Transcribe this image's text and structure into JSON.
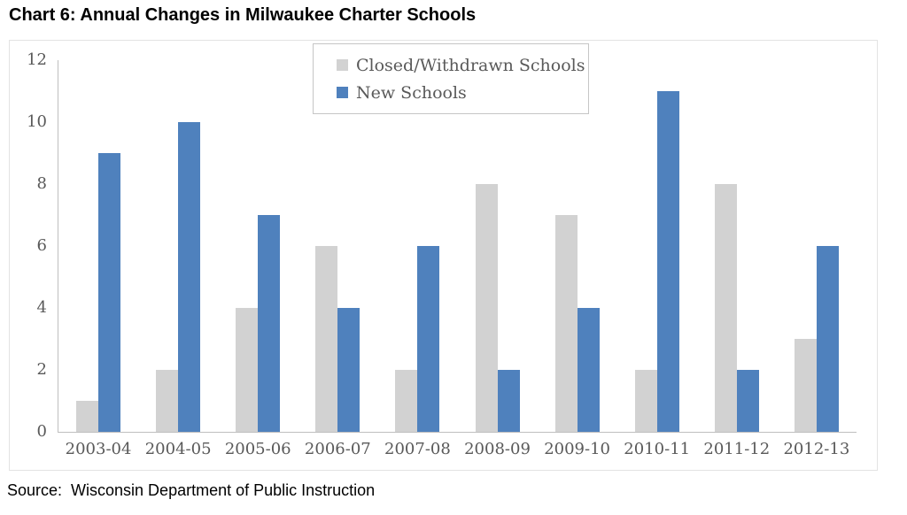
{
  "title": "Chart 6: Annual Changes in Milwaukee Charter Schools",
  "source": "Source:  Wisconsin Department of Public Instruction",
  "colors": {
    "closed_series": "#d2d2d2",
    "new_series": "#4f81bd",
    "axis_line": "#bfbfbf",
    "tick_text": "#595959",
    "legend_border": "#c6c6c6",
    "frame_border": "#e3e3e3"
  },
  "chart_data": {
    "type": "bar",
    "title": "Chart 6: Annual Changes in Milwaukee Charter Schools",
    "xlabel": "",
    "ylabel": "",
    "categories": [
      "2003-04",
      "2004-05",
      "2005-06",
      "2006-07",
      "2007-08",
      "2008-09",
      "2009-10",
      "2010-11",
      "2011-12",
      "2012-13"
    ],
    "series": [
      {
        "key": "closed",
        "name": "Closed/Withdrawn Schools",
        "color": "#d2d2d2",
        "values": [
          1,
          2,
          4,
          6,
          2,
          8,
          7,
          2,
          8,
          3
        ]
      },
      {
        "key": "new",
        "name": "New Schools",
        "color": "#4f81bd",
        "values": [
          9,
          10,
          7,
          4,
          6,
          2,
          4,
          11,
          2,
          6
        ]
      }
    ],
    "ylim": [
      0,
      12
    ],
    "yticks": [
      0,
      2,
      4,
      6,
      8,
      10,
      12
    ],
    "grid": false,
    "legend_position": "top-center"
  }
}
